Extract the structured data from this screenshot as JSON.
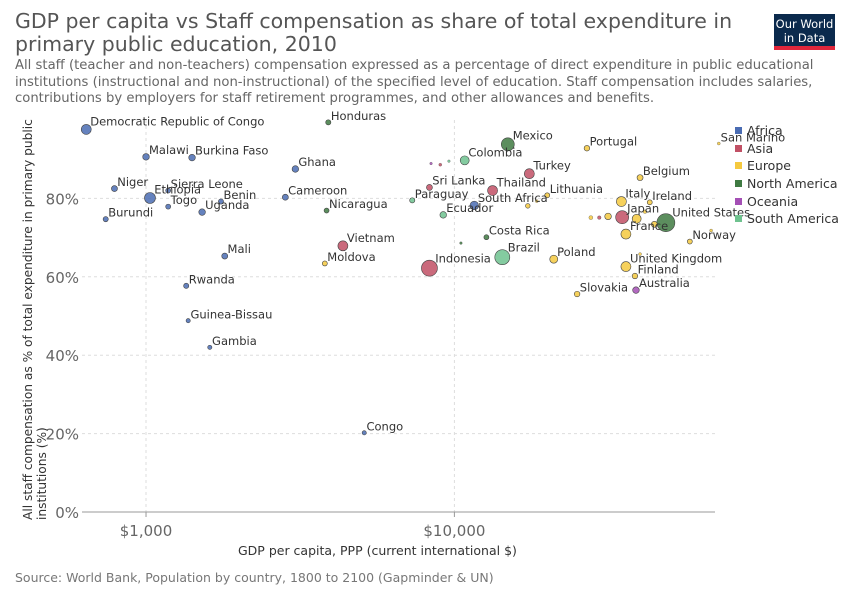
{
  "header": {
    "title": "GDP per capita vs Staff compensation as share of total expenditure in primary public education, 2010",
    "subtitle_lines": [
      "All staff (teacher and non-teachers) compensation expressed as a percentage of direct expenditure in public educational",
      "institutions (instructional and non-instructional) of the specified level of education. Staff compensation includes salaries,",
      "contributions by employers for staff retirement programmes, and other allowances and benefits."
    ],
    "logo_line1": "Our World",
    "logo_line2": "in Data"
  },
  "footer": {
    "source": "Source: World Bank, Population by country, 1800 to 2100 (Gapminder & UN)"
  },
  "chart_data": {
    "type": "scatter",
    "title": "GDP per capita vs Staff compensation as share of total expenditure in primary public education, 2010",
    "xlabel": "GDP per capita, PPP (current international $)",
    "ylabel": "All staff compensation as % of total expenditure in primary public institutions (%)",
    "x_scale": "log",
    "xlim": [
      620,
      70000
    ],
    "ylim": [
      0,
      100
    ],
    "x_ticks": [
      {
        "value": 1000,
        "label": "$1,000"
      },
      {
        "value": 10000,
        "label": "$10,000"
      }
    ],
    "y_ticks": [
      {
        "value": 0,
        "label": "0%"
      },
      {
        "value": 20,
        "label": "20%"
      },
      {
        "value": 40,
        "label": "40%"
      },
      {
        "value": 60,
        "label": "60%"
      },
      {
        "value": 80,
        "label": "80%"
      }
    ],
    "grid": true,
    "legend_position": "right",
    "size_encodes": "population",
    "series": [
      {
        "name": "Africa",
        "color": "#4a6cb3",
        "points": [
          {
            "label": "Democratic Republic of Congo",
            "x": 640,
            "y": 97.6,
            "r": 5
          },
          {
            "label": "Malawi",
            "x": 1000,
            "y": 90.6,
            "r": 3.3
          },
          {
            "label": "Burkina Faso",
            "x": 1410,
            "y": 90.4,
            "r": 3.3
          },
          {
            "label": "Niger",
            "x": 790,
            "y": 82.5,
            "r": 3
          },
          {
            "label": "Sierra Leone",
            "x": 1180,
            "y": 82.0,
            "r": 2.5
          },
          {
            "label": "Ethiopia",
            "x": 1030,
            "y": 80.1,
            "r": 5.5
          },
          {
            "label": "Togo",
            "x": 1180,
            "y": 77.9,
            "r": 2.5
          },
          {
            "label": "Benin",
            "x": 1750,
            "y": 79.2,
            "r": 2.6
          },
          {
            "label": "Uganda",
            "x": 1520,
            "y": 76.5,
            "r": 3.3
          },
          {
            "label": "Burundi",
            "x": 740,
            "y": 74.7,
            "r": 2.6
          },
          {
            "label": "Ghana",
            "x": 3050,
            "y": 87.5,
            "r": 3.3
          },
          {
            "label": "Cameroon",
            "x": 2830,
            "y": 80.3,
            "r": 3
          },
          {
            "label": "Mali",
            "x": 1800,
            "y": 65.3,
            "r": 3
          },
          {
            "label": "Rwanda",
            "x": 1350,
            "y": 57.7,
            "r": 2.6
          },
          {
            "label": "Guinea-Bissau",
            "x": 1370,
            "y": 48.8,
            "r": 2.1
          },
          {
            "label": "Gambia",
            "x": 1610,
            "y": 42.0,
            "r": 2.1
          },
          {
            "label": "Congo",
            "x": 5100,
            "y": 20.2,
            "r": 2.1
          },
          {
            "label": "South Africa",
            "x": 11600,
            "y": 78.2,
            "r": 4.3
          }
        ]
      },
      {
        "name": "Asia",
        "color": "#c15065",
        "points": [
          {
            "label": "Sri Lanka",
            "x": 8300,
            "y": 82.8,
            "r": 3
          },
          {
            "label": "Thailand",
            "x": 13300,
            "y": 82.0,
            "r": 5
          },
          {
            "label": "Turkey",
            "x": 17500,
            "y": 86.3,
            "r": 5
          },
          {
            "label": "Vietnam",
            "x": 4350,
            "y": 67.9,
            "r": 5
          },
          {
            "label": "Indonesia",
            "x": 8300,
            "y": 62.2,
            "r": 8
          },
          {
            "label": "Japan",
            "x": 35000,
            "y": 75.2,
            "r": 6.5
          }
        ]
      },
      {
        "name": "Europe",
        "color": "#f5c93f",
        "points": [
          {
            "label": "Portugal",
            "x": 26900,
            "y": 92.8,
            "r": 2.8
          },
          {
            "label": "San Marino",
            "x": 72000,
            "y": 94.0,
            "r": 1.5
          },
          {
            "label": "Lithuania",
            "x": 20000,
            "y": 80.8,
            "r": 2.5
          },
          {
            "label": "Belgium",
            "x": 40000,
            "y": 85.3,
            "r": 3
          },
          {
            "label": "Italy",
            "x": 34800,
            "y": 79.2,
            "r": 5
          },
          {
            "label": "Ireland",
            "x": 43000,
            "y": 79.0,
            "r": 2.5
          },
          {
            "label": "France",
            "x": 36000,
            "y": 70.9,
            "r": 5
          },
          {
            "label": "Norway",
            "x": 58000,
            "y": 69.0,
            "r": 2.5
          },
          {
            "label": "Poland",
            "x": 21000,
            "y": 64.5,
            "r": 4
          },
          {
            "label": "Moldova",
            "x": 3800,
            "y": 63.4,
            "r": 2.5
          },
          {
            "label": "United Kingdom",
            "x": 36000,
            "y": 62.6,
            "r": 5
          },
          {
            "label": "Finland",
            "x": 38500,
            "y": 60.2,
            "r": 2.8
          },
          {
            "label": "Slovakia",
            "x": 25000,
            "y": 55.6,
            "r": 2.8
          }
        ]
      },
      {
        "name": "North America",
        "color": "#3f7a42",
        "points": [
          {
            "label": "Honduras",
            "x": 3900,
            "y": 99.4,
            "r": 2.6
          },
          {
            "label": "Mexico",
            "x": 14900,
            "y": 93.8,
            "r": 6.5
          },
          {
            "label": "Nicaragua",
            "x": 3850,
            "y": 76.9,
            "r": 2.5
          },
          {
            "label": "Costa Rica",
            "x": 12700,
            "y": 70.1,
            "r": 2.5
          },
          {
            "label": "United States",
            "x": 48500,
            "y": 73.8,
            "r": 9
          }
        ]
      },
      {
        "name": "Oceania",
        "color": "#a44fb5",
        "points": [
          {
            "label": "Australia",
            "x": 38800,
            "y": 56.6,
            "r": 3.3
          }
        ]
      },
      {
        "name": "South America",
        "color": "#6fc28f",
        "points": [
          {
            "label": "Colombia",
            "x": 10800,
            "y": 89.7,
            "r": 4.5
          },
          {
            "label": "Paraguay",
            "x": 7300,
            "y": 79.5,
            "r": 2.6
          },
          {
            "label": "Ecuador",
            "x": 9200,
            "y": 75.8,
            "r": 3.3
          },
          {
            "label": "Brazil",
            "x": 14300,
            "y": 65.0,
            "r": 7.5
          }
        ]
      }
    ],
    "unlabeled_points": [
      {
        "series": "Asia",
        "x": 9000,
        "y": 88.6,
        "r": 1.5
      },
      {
        "series": "Asia",
        "x": 29500,
        "y": 75.1,
        "r": 1.8
      },
      {
        "series": "Oceania",
        "x": 8400,
        "y": 88.9,
        "r": 1.3
      },
      {
        "series": "South America",
        "x": 9600,
        "y": 89.5,
        "r": 1.3
      },
      {
        "series": "North America",
        "x": 10500,
        "y": 68.6,
        "r": 1.3
      },
      {
        "series": "Europe",
        "x": 17300,
        "y": 78.1,
        "r": 2.3
      },
      {
        "series": "Europe",
        "x": 18500,
        "y": 79.3,
        "r": 1.5
      },
      {
        "series": "Europe",
        "x": 27700,
        "y": 75.1,
        "r": 2
      },
      {
        "series": "Europe",
        "x": 31500,
        "y": 75.4,
        "r": 3.3
      },
      {
        "series": "Europe",
        "x": 39000,
        "y": 74.8,
        "r": 4.5
      },
      {
        "series": "Europe",
        "x": 44500,
        "y": 73.4,
        "r": 3
      },
      {
        "series": "Europe",
        "x": 68000,
        "y": 71.8,
        "r": 1.5
      },
      {
        "series": "Europe",
        "x": 41500,
        "y": 76.6,
        "r": 1.8
      },
      {
        "series": "Europe",
        "x": 40000,
        "y": 65.8,
        "r": 1.5
      }
    ]
  }
}
